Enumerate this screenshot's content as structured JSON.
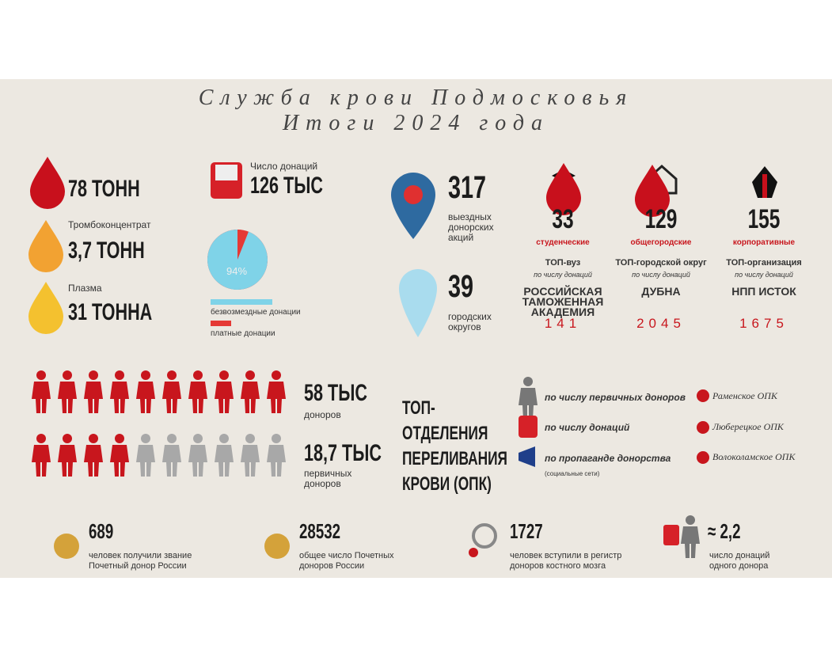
{
  "header": {
    "title_line1": "Служба крови Подмосковья",
    "title_line2": "Итоги 2024 года"
  },
  "blood": [
    {
      "value": "78 ТОНН"
    },
    {
      "label": "Тромбоконцентрат",
      "value": "3,7 ТОНН"
    },
    {
      "label": "Плазма",
      "value": "31 ТОННА"
    }
  ],
  "donations": {
    "label": "Число донаций",
    "value": "126 ТЫС",
    "pie": {
      "value": 94,
      "label": "94%"
    },
    "legend": [
      "безвозмездные донации",
      "платные донации"
    ]
  },
  "actions": {
    "value": "317",
    "label": "выездных донорских акций"
  },
  "districts": {
    "value": "39",
    "label": "городских округов"
  },
  "categories": [
    {
      "value": "33",
      "name": "студенческие",
      "top_label": "ТОП-вуз",
      "top_sub": "по числу донаций",
      "top_name": "РОССИЙСКАЯ ТАМОЖЕННАЯ АКАДЕМИЯ",
      "top_value": "141"
    },
    {
      "value": "129",
      "name": "общегородские",
      "top_label": "ТОП-городской округ",
      "top_sub": "по числу донаций",
      "top_name": "ДУБНА",
      "top_value": "2045"
    },
    {
      "value": "155",
      "name": "корпоративные",
      "top_label": "ТОП-организация",
      "top_sub": "по числу донаций",
      "top_name": "НПП ИСТОК",
      "top_value": "1675"
    }
  ],
  "donors": [
    {
      "value": "58 ТЫС",
      "label": "доноров"
    },
    {
      "value": "18,7 ТЫС",
      "label": "первичных доноров"
    }
  ],
  "top": {
    "title": "ТОП-ОТДЕЛЕНИЯ ПЕРЕЛИВАНИЯ КРОВИ (ОПК)",
    "criteria": [
      {
        "text": "по числу первичных доноров",
        "winner": "Раменское ОПК"
      },
      {
        "text": "по числу донаций",
        "winner": "Люберецкое ОПК"
      },
      {
        "text": "по пропаганде донорства",
        "note": "(социальные сети)",
        "winner": "Волоколамское ОПК"
      }
    ]
  },
  "footer": [
    {
      "value": "689",
      "label": "человек получили звание Почетный донор России"
    },
    {
      "value": "28532",
      "label": "общее число Почетных доноров России"
    },
    {
      "value": "1727",
      "label": "человек вступили в регистр доноров костного мозга"
    },
    {
      "value": "≈ 2,2",
      "label": "число донаций одного донора"
    }
  ]
}
